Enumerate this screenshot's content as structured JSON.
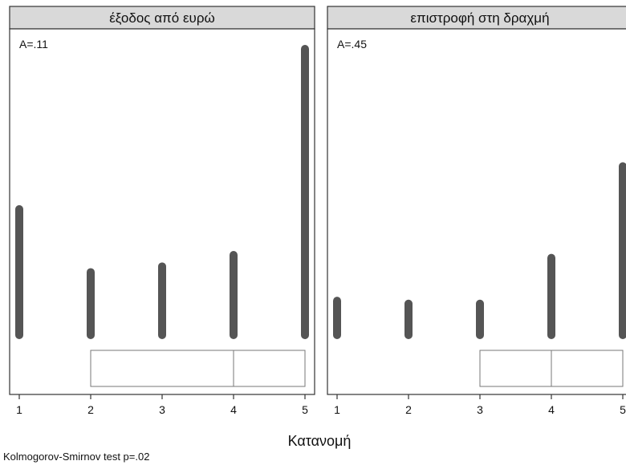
{
  "chart_data": {
    "type": "bar",
    "x_categories": [
      "1",
      "2",
      "3",
      "4",
      "5"
    ],
    "xlabel": "Κατανομή",
    "ylim": [
      0,
      100
    ],
    "bar_color": "#555555",
    "panels": [
      {
        "title": "έξοδος από ευρώ",
        "annotation": "A=.11",
        "values": [
          44,
          22,
          24,
          28,
          100
        ],
        "box": {
          "min": 2,
          "q1": 2,
          "median": 4,
          "q3": 5,
          "max": 5
        }
      },
      {
        "title": "επιστροφή στη δραχμή",
        "annotation": "A=.45",
        "values": [
          12,
          11,
          11,
          27,
          59
        ],
        "box": {
          "min": 3,
          "q1": 3,
          "median": 4,
          "q3": 5,
          "max": 5
        }
      }
    ],
    "note": "Kolmogorov-Smirnov test p=.02"
  }
}
